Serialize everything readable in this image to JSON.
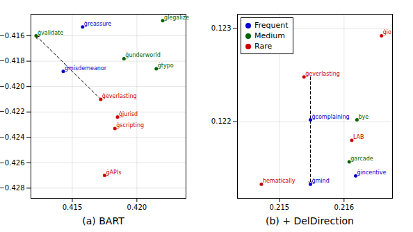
{
  "chart_data": [
    {
      "type": "scatter",
      "title": "(a) BART",
      "xlim": [
        0.4118,
        0.4238
      ],
      "ylim": [
        -0.4288,
        -0.4143
      ],
      "xticks": [
        0.415,
        {
          "value": 0.42,
          "label": "0.420"
        }
      ],
      "yticks": [
        {
          "value": -0.416,
          "label": "−0.416"
        },
        {
          "value": -0.418,
          "label": "−0.418"
        },
        {
          "value": -0.42,
          "label": "−0.420"
        },
        {
          "value": -0.422,
          "label": "−0.422"
        },
        {
          "value": -0.424,
          "label": "−0.424"
        },
        {
          "value": -0.426,
          "label": "−0.426"
        },
        {
          "value": -0.428,
          "label": "−0.428"
        }
      ],
      "grid": true,
      "labels": [
        "ġreassure",
        "ġlegalize",
        "ġvalidate",
        "ġmisdemeanor",
        "ġunderworld",
        "ġtypo",
        "ġeverlasting",
        "ġjurisd",
        "ġscripting",
        "ġAPIs"
      ],
      "x": [
        0.4158,
        0.422,
        0.4122,
        0.4143,
        0.419,
        0.4215,
        0.4172,
        0.4185,
        0.4183,
        0.4175
      ],
      "y": [
        -0.4153,
        -0.4148,
        -0.416,
        -0.4188,
        -0.4178,
        -0.4186,
        -0.421,
        -0.4224,
        -0.4233,
        -0.427
      ],
      "colors": [
        "#0000cc",
        "#006400",
        "#006400",
        "#0000cc",
        "#006400",
        "#006400",
        "#cc0000",
        "#cc0000",
        "#cc0000",
        "#cc0000"
      ],
      "annotations": [
        {
          "type": "arrow",
          "x": 0.4172,
          "y": -0.421,
          "x2": 0.4122,
          "y2": -0.416,
          "line_style": "dashed"
        }
      ]
    },
    {
      "type": "scatter",
      "title": "(b) + DelDirection",
      "xlim": [
        0.21435,
        0.21675
      ],
      "ylim": [
        0.12118,
        0.12315
      ],
      "xticks": [
        0.215,
        0.216
      ],
      "yticks": [
        0.122,
        0.123
      ],
      "grid": true,
      "legend": "upper left",
      "series": [
        {
          "name": "Frequent",
          "color": "#0000cc",
          "labels": [
            "ġcomplaining",
            "ġincentive",
            "ġmind"
          ],
          "x": [
            0.21548,
            0.21618,
            0.21548
          ],
          "y": [
            0.12202,
            0.12142,
            0.12133
          ]
        },
        {
          "name": "Medium",
          "color": "#006400",
          "labels": [
            "bye",
            "ġarcade"
          ],
          "x": [
            0.2162,
            0.21608
          ],
          "y": [
            0.12202,
            0.12157
          ]
        },
        {
          "name": "Rare",
          "color": "#cc0000",
          "labels": [
            "ġio",
            "ġeverlasting",
            "LAB",
            "hematically"
          ],
          "x": [
            0.21658,
            0.21538,
            0.21612,
            0.21472
          ],
          "y": [
            0.12292,
            0.12248,
            0.1218,
            0.12133
          ]
        }
      ],
      "annotations": [
        {
          "type": "arrow",
          "x": 0.21548,
          "y": 0.12248,
          "x2": 0.21548,
          "y2": 0.12133,
          "line_style": "dashed"
        }
      ]
    }
  ]
}
